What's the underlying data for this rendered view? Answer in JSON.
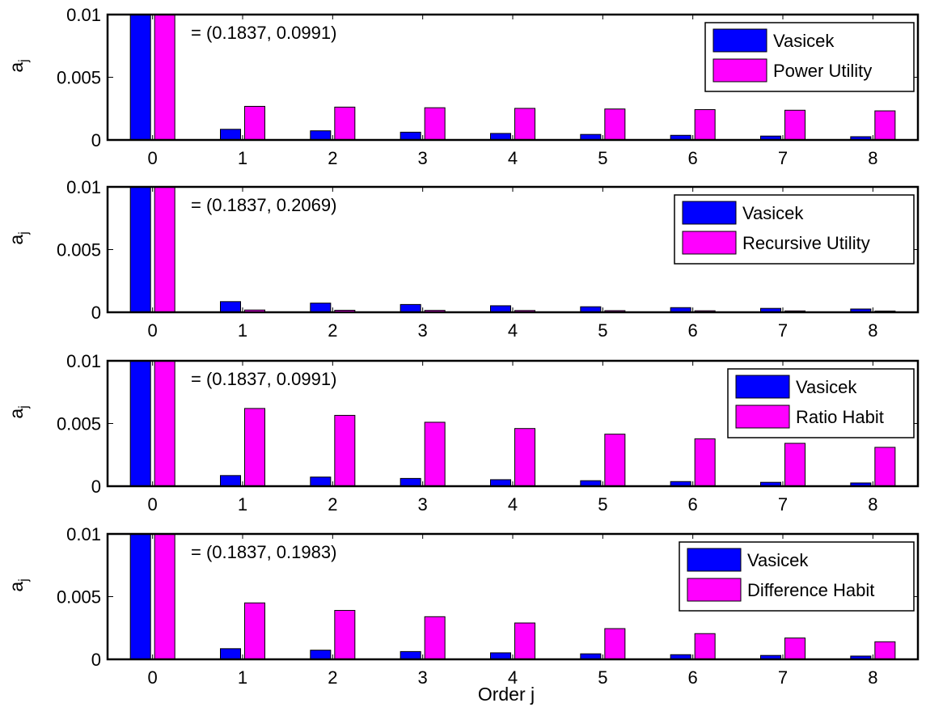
{
  "figure": {
    "xlabel": "Order j",
    "colors": {
      "Vasicek": "#0000ff",
      "model": "#ff00ff",
      "axis": "#000000"
    }
  },
  "chart_data": [
    {
      "type": "bar",
      "categories": [
        "0",
        "1",
        "2",
        "3",
        "4",
        "5",
        "6",
        "7",
        "8"
      ],
      "ylabel": "a_j",
      "ylabel_main": "a",
      "ylabel_sub": "j",
      "ylim": [
        0,
        0.01
      ],
      "yticks": [
        "0",
        "0.005",
        "0.01"
      ],
      "annotation": "= (0.1837, 0.0991)",
      "legend_position": "top-right",
      "series": [
        {
          "name": "Vasicek",
          "color": "#0000ff",
          "values": [
            0.01,
            0.00085,
            0.00073,
            0.00062,
            0.00052,
            0.00044,
            0.00037,
            0.00031,
            0.00026
          ]
        },
        {
          "name": "Power Utility",
          "color": "#ff00ff",
          "values": [
            0.01,
            0.00268,
            0.00262,
            0.00257,
            0.00252,
            0.00247,
            0.00242,
            0.00237,
            0.00232
          ]
        }
      ]
    },
    {
      "type": "bar",
      "categories": [
        "0",
        "1",
        "2",
        "3",
        "4",
        "5",
        "6",
        "7",
        "8"
      ],
      "ylabel": "a_j",
      "ylabel_main": "a",
      "ylabel_sub": "j",
      "ylim": [
        0,
        0.01
      ],
      "yticks": [
        "0",
        "0.005",
        "0.01"
      ],
      "annotation": "= (0.1837, 0.2069)",
      "legend_position": "top-right",
      "series": [
        {
          "name": "Vasicek",
          "color": "#0000ff",
          "values": [
            0.01,
            0.00085,
            0.00073,
            0.00062,
            0.00052,
            0.00044,
            0.00037,
            0.00031,
            0.00026
          ]
        },
        {
          "name": "Recursive Utility",
          "color": "#ff00ff",
          "values": [
            0.01,
            0.00018,
            0.00016,
            0.00015,
            0.00014,
            0.00013,
            0.00012,
            0.00011,
            0.0001
          ]
        }
      ]
    },
    {
      "type": "bar",
      "categories": [
        "0",
        "1",
        "2",
        "3",
        "4",
        "5",
        "6",
        "7",
        "8"
      ],
      "ylabel": "a_j",
      "ylabel_main": "a",
      "ylabel_sub": "j",
      "ylim": [
        0,
        0.01
      ],
      "yticks": [
        "0",
        "0.005",
        "0.01"
      ],
      "annotation": "= (0.1837, 0.0991)",
      "legend_position": "top-right",
      "series": [
        {
          "name": "Vasicek",
          "color": "#0000ff",
          "values": [
            0.01,
            0.00085,
            0.00073,
            0.00062,
            0.00052,
            0.00044,
            0.00037,
            0.00031,
            0.00026
          ]
        },
        {
          "name": "Ratio Habit",
          "color": "#ff00ff",
          "values": [
            0.01,
            0.0062,
            0.00565,
            0.0051,
            0.0046,
            0.00415,
            0.00378,
            0.00342,
            0.0031
          ]
        }
      ]
    },
    {
      "type": "bar",
      "categories": [
        "0",
        "1",
        "2",
        "3",
        "4",
        "5",
        "6",
        "7",
        "8"
      ],
      "ylabel": "a_j",
      "ylabel_main": "a",
      "ylabel_sub": "j",
      "ylim": [
        0,
        0.01
      ],
      "yticks": [
        "0",
        "0.005",
        "0.01"
      ],
      "annotation": "= (0.1837, 0.1983)",
      "legend_position": "top-right",
      "series": [
        {
          "name": "Vasicek",
          "color": "#0000ff",
          "values": [
            0.01,
            0.00085,
            0.00073,
            0.00062,
            0.00052,
            0.00044,
            0.00037,
            0.00031,
            0.00026
          ]
        },
        {
          "name": "Difference Habit",
          "color": "#ff00ff",
          "values": [
            0.01,
            0.0045,
            0.0039,
            0.0034,
            0.0029,
            0.00245,
            0.00205,
            0.0017,
            0.0014
          ]
        }
      ]
    }
  ]
}
